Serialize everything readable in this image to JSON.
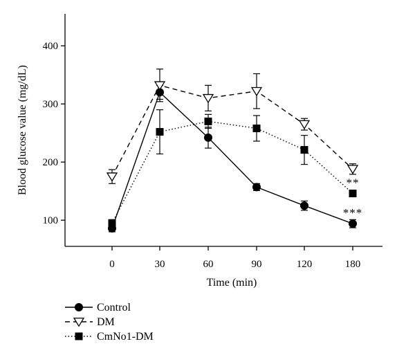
{
  "chart_data": {
    "type": "line",
    "xlabel": "Time (min)",
    "ylabel": "Blood glucose value (mg/dL)",
    "categories": [
      "0",
      "30",
      "60",
      "90",
      "120",
      "180"
    ],
    "x": [
      0,
      30,
      60,
      90,
      120,
      180
    ],
    "ylim": [
      55,
      455
    ],
    "yticks": [
      100,
      200,
      300,
      400
    ],
    "grid": false,
    "legend_position": "bottom-left",
    "series": [
      {
        "name": "Control",
        "marker": "filled-circle",
        "line_style": "solid",
        "values": [
          86,
          320,
          242,
          157,
          125,
          94
        ],
        "errors": [
          6,
          12,
          18,
          6,
          8,
          7
        ]
      },
      {
        "name": "DM",
        "marker": "open-triangle-down",
        "line_style": "dashed",
        "values": [
          175,
          332,
          310,
          322,
          265,
          188
        ],
        "errors": [
          12,
          28,
          22,
          30,
          10,
          9
        ]
      },
      {
        "name": "CmNo1-DM",
        "marker": "filled-square",
        "line_style": "dotted",
        "values": [
          95,
          252,
          270,
          258,
          221,
          146
        ],
        "errors": [
          6,
          38,
          12,
          22,
          25,
          4
        ]
      }
    ],
    "annotations": [
      {
        "text": "**",
        "x": 180,
        "series": "CmNo1-DM"
      },
      {
        "text": "***",
        "x": 180,
        "series": "Control"
      }
    ]
  }
}
